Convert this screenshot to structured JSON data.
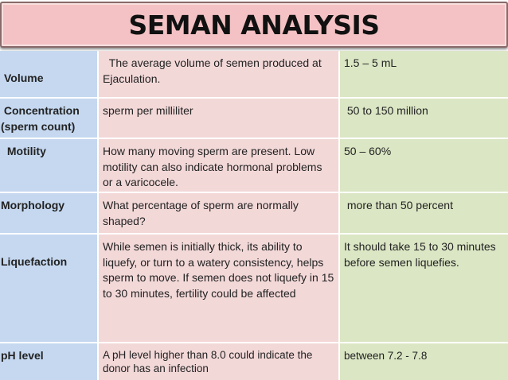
{
  "title": "SEMAN ANALYSIS",
  "rows": [
    {
      "parameter": "Volume",
      "description": "  The average volume of semen produced at Ejaculation.",
      "normal": "1.5 – 5 mL"
    },
    {
      "parameter": " Concentration (sperm count)",
      "description": "sperm per milliliter",
      "normal": " 50 to 150 million"
    },
    {
      "parameter": " Motility",
      "description": "How many moving sperm are present. Low motility can also indicate hormonal problems or a varicocele.",
      "normal": "50 – 60%"
    },
    {
      "parameter": "Morphology",
      "description": "What percentage of sperm are normally shaped?",
      "normal": " more than 50 percent"
    },
    {
      "parameter": "Liquefaction",
      "description": "While semen is initially thick, its ability to liquefy, or turn to a watery consistency, helps sperm to move. If semen does not liquefy in 15 to 30 minutes, fertility could be affected",
      "normal": "It should take 15 to 30 minutes before semen liquefies."
    },
    {
      "parameter": "pH level",
      "description": "A pH level higher than 8.0 could indicate the donor has an infection",
      "normal": "between 7.2 - 7.8"
    }
  ]
}
